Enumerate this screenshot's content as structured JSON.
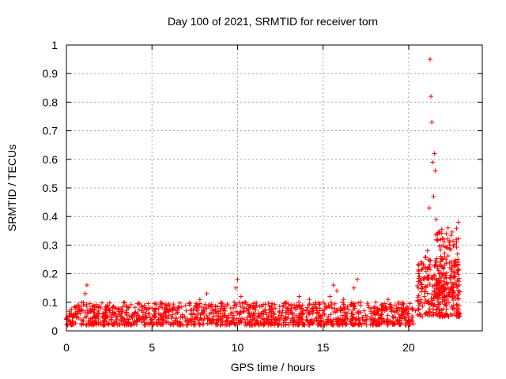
{
  "chart_data": {
    "type": "scatter",
    "title": "Day 100 of 2021, SRMTID for receiver torn",
    "xlabel": "GPS time / hours",
    "ylabel": "SRMTID / TECUs",
    "xlim": [
      0,
      24.3
    ],
    "ylim": [
      0,
      1
    ],
    "xticks": [
      0,
      5,
      10,
      15,
      20
    ],
    "xtick_labels": [
      "0",
      "5",
      "10",
      "15",
      "20"
    ],
    "yticks": [
      0,
      0.1,
      0.2,
      0.3,
      0.4,
      0.5,
      0.6,
      0.7,
      0.8,
      0.9,
      1
    ],
    "ytick_labels": [
      "0",
      "0.1",
      "0.2",
      "0.3",
      "0.4",
      "0.5",
      "0.6",
      "0.7",
      "0.8",
      "0.9",
      "1"
    ],
    "grid": true,
    "marker": "+",
    "series": [
      {
        "name": "SRMTID",
        "color": "#ff0000",
        "x": [
          0.0,
          0.2,
          0.4,
          0.6,
          0.8,
          1.0,
          1.1,
          1.2,
          1.4,
          1.6,
          1.8,
          2.0,
          2.2,
          2.4,
          2.6,
          2.8,
          3.0,
          3.2,
          3.4,
          3.6,
          3.8,
          4.0,
          4.2,
          4.4,
          4.6,
          4.8,
          5.0,
          5.2,
          5.4,
          5.6,
          5.8,
          6.0,
          6.2,
          6.4,
          6.6,
          6.8,
          7.0,
          7.2,
          7.4,
          7.6,
          7.8,
          8.0,
          8.2,
          8.4,
          8.6,
          8.8,
          9.0,
          9.2,
          9.4,
          9.6,
          9.8,
          9.9,
          10.0,
          10.2,
          10.4,
          10.6,
          10.8,
          11.0,
          11.2,
          11.4,
          11.6,
          11.8,
          12.0,
          12.2,
          12.4,
          12.6,
          12.8,
          13.0,
          13.2,
          13.4,
          13.6,
          13.8,
          14.0,
          14.2,
          14.4,
          14.6,
          14.8,
          15.0,
          15.2,
          15.4,
          15.6,
          15.8,
          16.0,
          16.2,
          16.4,
          16.6,
          16.8,
          17.0,
          17.2,
          17.4,
          17.6,
          17.8,
          18.0,
          18.2,
          18.4,
          18.6,
          18.8,
          19.0,
          19.2,
          19.4,
          19.6,
          19.8,
          20.0,
          20.2,
          20.4,
          20.6,
          20.8,
          21.0,
          21.1,
          21.2,
          21.25,
          21.3,
          21.35,
          21.4,
          21.45,
          21.5,
          21.55,
          21.6,
          21.7,
          21.8,
          21.9,
          22.0,
          22.1,
          22.2,
          22.3,
          22.4,
          22.5,
          22.6,
          22.7,
          22.8,
          22.9
        ],
        "y": [
          0.04,
          0.06,
          0.05,
          0.08,
          0.06,
          0.09,
          0.13,
          0.16,
          0.07,
          0.05,
          0.06,
          0.08,
          0.05,
          0.09,
          0.04,
          0.03,
          0.05,
          0.06,
          0.04,
          0.08,
          0.05,
          0.06,
          0.04,
          0.07,
          0.05,
          0.06,
          0.04,
          0.05,
          0.06,
          0.04,
          0.05,
          0.07,
          0.05,
          0.06,
          0.08,
          0.05,
          0.07,
          0.09,
          0.06,
          0.08,
          0.11,
          0.07,
          0.13,
          0.09,
          0.05,
          0.06,
          0.07,
          0.05,
          0.09,
          0.08,
          0.1,
          0.15,
          0.18,
          0.12,
          0.08,
          0.07,
          0.09,
          0.06,
          0.05,
          0.06,
          0.07,
          0.05,
          0.06,
          0.04,
          0.05,
          0.06,
          0.05,
          0.07,
          0.06,
          0.08,
          0.12,
          0.09,
          0.07,
          0.11,
          0.06,
          0.08,
          0.07,
          0.1,
          0.08,
          0.12,
          0.16,
          0.14,
          0.08,
          0.11,
          0.06,
          0.09,
          0.15,
          0.18,
          0.1,
          0.07,
          0.05,
          0.06,
          0.08,
          0.06,
          0.09,
          0.07,
          0.11,
          0.08,
          0.09,
          0.1,
          0.08,
          0.07,
          0.06,
          0.08,
          0.07,
          0.09,
          0.05,
          0.06,
          0.28,
          0.43,
          0.95,
          0.82,
          0.73,
          0.59,
          0.47,
          0.62,
          0.56,
          0.39,
          0.32,
          0.2,
          0.15,
          0.11,
          0.23,
          0.34,
          0.36,
          0.3,
          0.22,
          0.16,
          0.19,
          0.31,
          0.38
        ]
      }
    ],
    "noise_clusters": [
      {
        "x_from": 0.0,
        "x_to": 20.3,
        "y_from": 0.02,
        "y_to": 0.1,
        "count": 1250
      },
      {
        "x_from": 20.5,
        "x_to": 23.0,
        "y_from": 0.05,
        "y_to": 0.26,
        "count": 280
      },
      {
        "x_from": 21.5,
        "x_to": 23.0,
        "y_from": 0.12,
        "y_to": 0.36,
        "count": 110
      }
    ]
  }
}
